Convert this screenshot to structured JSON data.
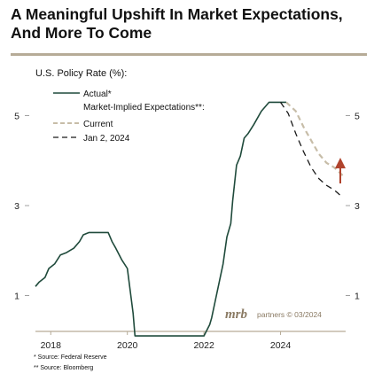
{
  "page": {
    "title": "A Meaningful Upshift In Market Expectations, And More To Come",
    "subtitle": "U.S. Policy Rate (%):"
  },
  "legend": {
    "actual": "Actual*",
    "implied_header": "Market-Implied Expectations**:",
    "current": "Current",
    "jan2024": "Jan 2, 2024"
  },
  "sources": {
    "fed": "*  Source: Federal Reserve",
    "bloomberg": "** Source: Bloomberg"
  },
  "branding": {
    "logo": "mrb",
    "tagline": "partners © 03/2024"
  },
  "colors": {
    "actual": "#1f4a3b",
    "current": "#c7bda8",
    "jan2024": "#1a1a1a",
    "arrow": "#b0432d",
    "axis": "#b6ab97"
  },
  "chart_data": {
    "type": "line",
    "title": "A Meaningful Upshift In Market Expectations, And More To Come",
    "ylabel": "U.S. Policy Rate (%):",
    "xlim": [
      2017.6,
      2025.7
    ],
    "ylim": [
      0.2,
      5.8
    ],
    "x_ticks": [
      2018,
      2020,
      2022,
      2024
    ],
    "y_ticks": [
      1,
      3,
      5
    ],
    "grid": false,
    "legend_position": "top-left",
    "series": [
      {
        "name": "Actual*",
        "style": "solid",
        "x": [
          2017.6,
          2017.7,
          2017.85,
          2017.95,
          2018.1,
          2018.25,
          2018.4,
          2018.5,
          2018.6,
          2018.75,
          2018.85,
          2019.0,
          2019.3,
          2019.5,
          2019.6,
          2019.7,
          2019.85,
          2020.0,
          2020.15,
          2020.2,
          2020.3,
          2020.5,
          2021.0,
          2021.5,
          2022.0,
          2022.15,
          2022.2,
          2022.3,
          2022.4,
          2022.5,
          2022.6,
          2022.7,
          2022.75,
          2022.85,
          2022.95,
          2023.05,
          2023.15,
          2023.3,
          2023.5,
          2023.7,
          2023.9,
          2024.15
        ],
        "y": [
          1.2,
          1.3,
          1.4,
          1.6,
          1.7,
          1.9,
          1.95,
          2.0,
          2.05,
          2.2,
          2.35,
          2.4,
          2.4,
          2.4,
          2.2,
          2.05,
          1.8,
          1.6,
          0.6,
          0.1,
          0.1,
          0.1,
          0.1,
          0.1,
          0.1,
          0.35,
          0.5,
          0.9,
          1.3,
          1.7,
          2.3,
          2.6,
          3.1,
          3.9,
          4.1,
          4.5,
          4.6,
          4.8,
          5.1,
          5.3,
          5.3,
          5.3
        ]
      },
      {
        "name": "Current",
        "style": "dashed",
        "x": [
          2024.15,
          2024.4,
          2024.6,
          2024.8,
          2025.0,
          2025.2,
          2025.4,
          2025.65
        ],
        "y": [
          5.3,
          5.1,
          4.75,
          4.45,
          4.15,
          3.95,
          3.85,
          3.65
        ]
      },
      {
        "name": "Jan 2, 2024",
        "style": "dashed",
        "x": [
          2024.0,
          2024.2,
          2024.4,
          2024.6,
          2024.8,
          2025.0,
          2025.2,
          2025.4,
          2025.6
        ],
        "y": [
          5.3,
          5.05,
          4.6,
          4.2,
          3.85,
          3.6,
          3.45,
          3.35,
          3.2
        ]
      }
    ]
  }
}
